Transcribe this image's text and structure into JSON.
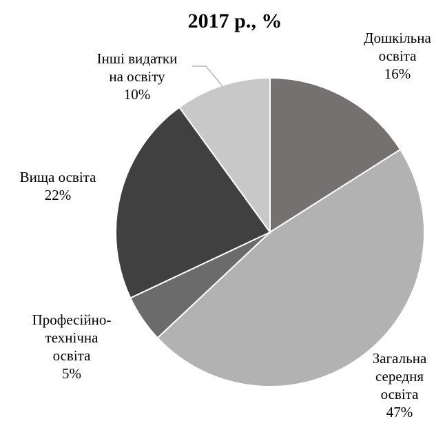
{
  "chart_data": {
    "type": "pie",
    "title": "2017 р., %",
    "start_angle_deg": 0,
    "direction": "clockwise",
    "slices": [
      {
        "label_lines": [
          "Дошкільна",
          "освіта"
        ],
        "value_label": "16%",
        "value": 16,
        "color": "#757170"
      },
      {
        "label_lines": [
          "Загальна",
          "середня",
          "освіта"
        ],
        "value_label": "47%",
        "value": 47,
        "color": "#b2b2b2"
      },
      {
        "label_lines": [
          "Професійно-",
          "технічна",
          "освіта"
        ],
        "value_label": "5%",
        "value": 5,
        "color": "#6b6b6b"
      },
      {
        "label_lines": [
          "Вища освіта"
        ],
        "value_label": "22%",
        "value": 22,
        "color": "#404040"
      },
      {
        "label_lines": [
          "Інші видатки",
          "на освіту"
        ],
        "value_label": "10%",
        "value": 10,
        "color": "#c8c8c8"
      }
    ]
  }
}
